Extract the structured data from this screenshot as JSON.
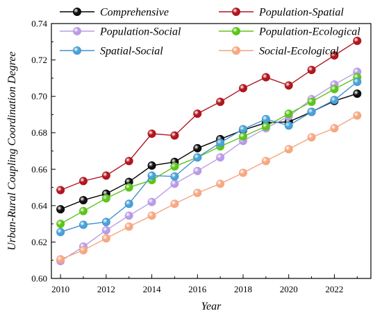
{
  "chart_data": {
    "type": "line",
    "xlabel": "Year",
    "ylabel": "Urban-Rural Coupling Coordination Degree",
    "x": [
      2010,
      2011,
      2012,
      2013,
      2014,
      2015,
      2016,
      2017,
      2018,
      2019,
      2020,
      2021,
      2022,
      2023
    ],
    "xlim": [
      2009.6,
      2023.6
    ],
    "ylim": [
      0.6,
      0.74
    ],
    "xticks": [
      "2010",
      "2012",
      "2014",
      "2016",
      "2018",
      "2020",
      "2022"
    ],
    "yticks": [
      "0.60",
      "0.62",
      "0.64",
      "0.66",
      "0.68",
      "0.70",
      "0.72",
      "0.74"
    ],
    "grid": false,
    "legend_position": "top",
    "series": [
      {
        "name": "Comprehensive",
        "color": "#000000",
        "fill": "#111111",
        "values": [
          0.638,
          0.643,
          0.6465,
          0.653,
          0.662,
          0.664,
          0.6715,
          0.6765,
          0.6815,
          0.6855,
          0.686,
          0.6915,
          0.6975,
          0.7015
        ]
      },
      {
        "name": "Population-Spatial",
        "color": "#b0171f",
        "fill": "#b0171f",
        "values": [
          0.6485,
          0.6535,
          0.6565,
          0.6645,
          0.6795,
          0.6785,
          0.6905,
          0.697,
          0.7045,
          0.7105,
          0.706,
          0.7145,
          0.7225,
          0.7305
        ]
      },
      {
        "name": "Population-Social",
        "color": "#b99be6",
        "fill": "#b99be6",
        "values": [
          0.6095,
          0.6175,
          0.6265,
          0.6345,
          0.642,
          0.652,
          0.659,
          0.6665,
          0.6755,
          0.6825,
          0.689,
          0.6985,
          0.7065,
          0.7135
        ]
      },
      {
        "name": "Population-Ecological",
        "color": "#5cc51c",
        "fill": "#5cc51c",
        "values": [
          0.63,
          0.637,
          0.644,
          0.65,
          0.654,
          0.6615,
          0.6665,
          0.6725,
          0.678,
          0.6835,
          0.6905,
          0.697,
          0.704,
          0.7105
        ]
      },
      {
        "name": "Spatial-Social",
        "color": "#3f92cc",
        "fill": "#4aa3d8",
        "values": [
          0.6255,
          0.6295,
          0.631,
          0.641,
          0.6565,
          0.656,
          0.6665,
          0.6745,
          0.682,
          0.6875,
          0.684,
          0.6915,
          0.698,
          0.708
        ]
      },
      {
        "name": "Social-Ecological",
        "color": "#f4a47e",
        "fill": "#f6a883",
        "values": [
          0.6105,
          0.6155,
          0.622,
          0.6285,
          0.6345,
          0.641,
          0.647,
          0.652,
          0.658,
          0.6645,
          0.671,
          0.6775,
          0.6825,
          0.6895
        ]
      }
    ]
  }
}
